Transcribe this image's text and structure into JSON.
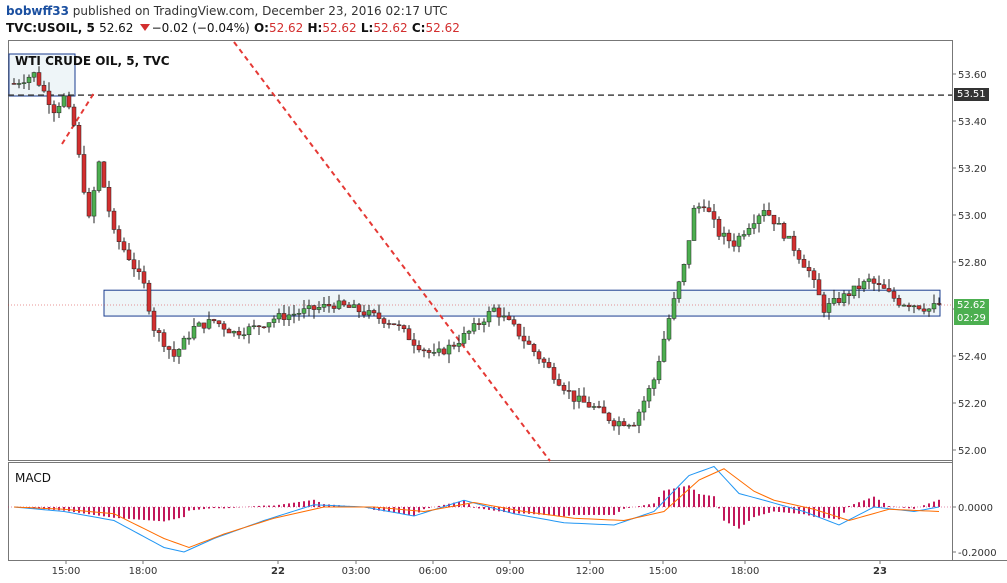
{
  "header": {
    "user": "bobwff33",
    "published": "published on TradingView.com, December 23, 2016 02:17 UTC",
    "symbol": "TVC:USOIL, 5",
    "last": "52.62",
    "change": "−0.02 (−0.04%)",
    "o_label": "O:",
    "o_val": "52.62",
    "h_label": "H:",
    "h_val": "52.62",
    "l_label": "L:",
    "l_val": "52.62",
    "c_label": "C:",
    "c_val": "52.62"
  },
  "chart_title": "WTI CRUDE OIL, 5, TVC",
  "macd_label": "MACD",
  "price_tag": "52.62",
  "countdown": "02:29",
  "level_tag": "53.51",
  "colors": {
    "up": "#4caf50",
    "down": "#d32f2f",
    "wick": "#222222",
    "macd_line": "#2196f3",
    "signal_line": "#ff6d00",
    "hist": "#c2185b",
    "trendline": "#e53935",
    "hline": "#444444",
    "box_border": "#1a3c8f",
    "box_fill": "#eef5f8",
    "tag_green": "#4caf50",
    "tag_dark": "#333333"
  },
  "chart_data": {
    "type": "candlestick",
    "y_ticks": [
      "53.60",
      "53.40",
      "53.20",
      "53.00",
      "52.80",
      "52.60",
      "52.40",
      "52.20",
      "52.00"
    ],
    "y_range": [
      51.98,
      53.69
    ],
    "x_ticks": [
      "15:00",
      "18:00",
      "22",
      "03:00",
      "06:00",
      "09:00",
      "12:00",
      "15:00",
      "18:00",
      "23"
    ],
    "price_path": [
      [
        0,
        53.56
      ],
      [
        4,
        53.6
      ],
      [
        8,
        53.45
      ],
      [
        10,
        53.5
      ],
      [
        12,
        53.38
      ],
      [
        15,
        52.98
      ],
      [
        17,
        53.22
      ],
      [
        20,
        52.92
      ],
      [
        23,
        52.82
      ],
      [
        26,
        52.7
      ],
      [
        28,
        52.52
      ],
      [
        32,
        52.4
      ],
      [
        36,
        52.52
      ],
      [
        40,
        52.55
      ],
      [
        44,
        52.5
      ],
      [
        48,
        52.52
      ],
      [
        52,
        52.56
      ],
      [
        56,
        52.58
      ],
      [
        60,
        52.6
      ],
      [
        64,
        52.62
      ],
      [
        68,
        52.6
      ],
      [
        72,
        52.57
      ],
      [
        76,
        52.54
      ],
      [
        80,
        52.46
      ],
      [
        84,
        52.4
      ],
      [
        88,
        52.45
      ],
      [
        92,
        52.52
      ],
      [
        96,
        52.6
      ],
      [
        100,
        52.52
      ],
      [
        104,
        52.42
      ],
      [
        108,
        52.32
      ],
      [
        112,
        52.22
      ],
      [
        116,
        52.18
      ],
      [
        120,
        52.12
      ],
      [
        124,
        52.12
      ],
      [
        128,
        52.3
      ],
      [
        131,
        52.56
      ],
      [
        134,
        52.78
      ],
      [
        136,
        53.02
      ],
      [
        138,
        53.05
      ],
      [
        141,
        52.92
      ],
      [
        144,
        52.88
      ],
      [
        147,
        52.96
      ],
      [
        150,
        53.03
      ],
      [
        153,
        52.95
      ],
      [
        156,
        52.86
      ],
      [
        159,
        52.76
      ],
      [
        162,
        52.6
      ],
      [
        165,
        52.64
      ],
      [
        168,
        52.68
      ],
      [
        171,
        52.72
      ],
      [
        174,
        52.68
      ],
      [
        177,
        52.63
      ],
      [
        180,
        52.62
      ],
      [
        183,
        52.6
      ],
      [
        185,
        52.62
      ]
    ],
    "macd_path": [
      [
        0,
        0.0
      ],
      [
        10,
        -0.02
      ],
      [
        20,
        -0.06
      ],
      [
        30,
        -0.18
      ],
      [
        34,
        -0.2
      ],
      [
        40,
        -0.14
      ],
      [
        50,
        -0.06
      ],
      [
        60,
        0.01
      ],
      [
        70,
        0.0
      ],
      [
        80,
        -0.04
      ],
      [
        90,
        0.03
      ],
      [
        100,
        -0.03
      ],
      [
        110,
        -0.07
      ],
      [
        120,
        -0.08
      ],
      [
        128,
        -0.02
      ],
      [
        135,
        0.14
      ],
      [
        140,
        0.18
      ],
      [
        145,
        0.06
      ],
      [
        150,
        0.03
      ],
      [
        158,
        -0.02
      ],
      [
        165,
        -0.08
      ],
      [
        172,
        0.0
      ],
      [
        180,
        -0.02
      ],
      [
        185,
        0.0
      ]
    ],
    "signal_path": [
      [
        0,
        0.0
      ],
      [
        10,
        -0.01
      ],
      [
        20,
        -0.03
      ],
      [
        30,
        -0.14
      ],
      [
        35,
        -0.18
      ],
      [
        42,
        -0.12
      ],
      [
        52,
        -0.05
      ],
      [
        62,
        0.0
      ],
      [
        72,
        0.0
      ],
      [
        82,
        -0.02
      ],
      [
        92,
        0.02
      ],
      [
        102,
        -0.02
      ],
      [
        112,
        -0.05
      ],
      [
        122,
        -0.06
      ],
      [
        130,
        -0.02
      ],
      [
        137,
        0.12
      ],
      [
        142,
        0.17
      ],
      [
        148,
        0.07
      ],
      [
        152,
        0.03
      ],
      [
        160,
        -0.01
      ],
      [
        167,
        -0.06
      ],
      [
        175,
        -0.01
      ],
      [
        185,
        -0.02
      ]
    ],
    "macd_y_ticks": [
      "0.0000",
      "-0.2000"
    ],
    "horizontal_level": 53.51,
    "support_box": [
      52.57,
      52.68
    ],
    "title": "",
    "xlabel": "",
    "ylabel": ""
  }
}
